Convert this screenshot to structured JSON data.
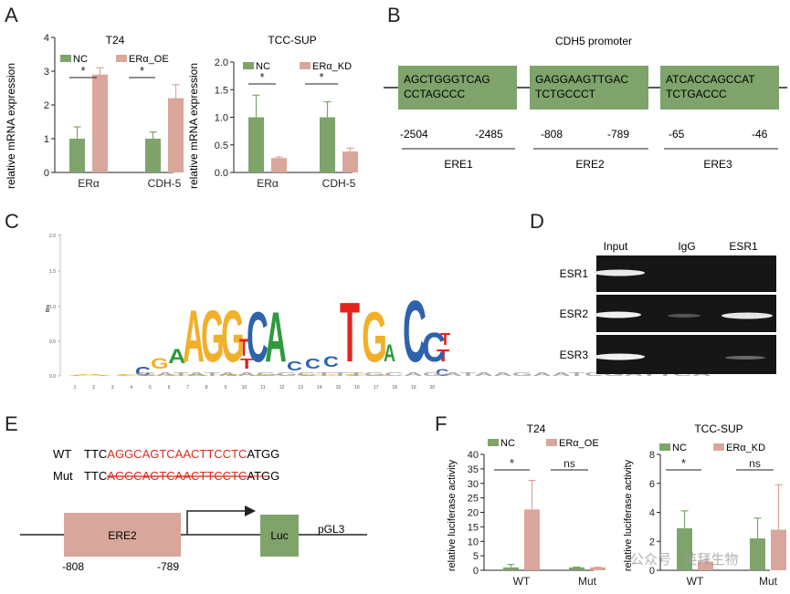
{
  "colors": {
    "nc": "#7ea46b",
    "treat": "#d9a69b",
    "ere_box": "#7ea46b",
    "ere2_box": "#d9a69b",
    "mut_red": "#e0281e",
    "logo_A": "#f0b02a",
    "logo_C": "#2e62ad",
    "logo_G": "#f0b02a",
    "logo_T": "#e3231c",
    "logo_A2": "#2e9a3c",
    "gel_bg": "#161616"
  },
  "panels": {
    "A": "A",
    "B": "B",
    "C": "C",
    "D": "D",
    "E": "E",
    "F": "F"
  },
  "panel_a": {
    "ylabel": "relative mRNA expression",
    "legend_nc": "NC",
    "sig": "*",
    "t24": {
      "title": "T24",
      "legend_treat": "ERα_OE"
    },
    "tcc": {
      "title": "TCC-SUP",
      "legend_treat": "ERα_KD"
    }
  },
  "panel_b": {
    "title": "CDH5 promoter",
    "boxes": [
      {
        "line1": "AGCTGGGTCAG",
        "line2": "CCTAGCCC",
        "start": "-2504",
        "end": "-2485",
        "label": "ERE1"
      },
      {
        "line1": "GAGGAAGTTGAC",
        "line2": "TCTGCCCT",
        "start": "-808",
        "end": "-789",
        "label": "ERE2"
      },
      {
        "line1": "ATCACCAGCCAT",
        "line2": "TCTGACCC",
        "start": "-65",
        "end": "-46",
        "label": "ERE3"
      }
    ]
  },
  "panel_c": {
    "ylabel": "Bits",
    "yticks": [
      "2.0",
      "1.5",
      "1.0",
      "0.5",
      "0.0"
    ],
    "positions": [
      "1",
      "2",
      "3",
      "4",
      "5",
      "6",
      "7",
      "8",
      "9",
      "10",
      "11",
      "12",
      "13",
      "14",
      "15",
      "16",
      "17",
      "18",
      "19",
      "20"
    ]
  },
  "panel_d": {
    "headers": [
      "Input",
      "IgG",
      "ESR1"
    ],
    "rows": [
      "ESR1",
      "ESR2",
      "ESR3"
    ]
  },
  "panel_e": {
    "wt_label": "WT",
    "mut_label": "Mut",
    "prefix": "TTC",
    "motif": "AGGCAGTCAACTTCCTC",
    "suffix": "ATGG",
    "ere_label": "ERE2",
    "luc_label": "Luc",
    "vector": "pGL3",
    "start": "-808",
    "end": "-789"
  },
  "panel_f": {
    "ylabel": "relative luciferase activity",
    "legend_nc": "NC",
    "sig": "*",
    "ns": "ns",
    "t24": {
      "title": "T24",
      "legend_treat": "ERα_OE"
    },
    "tcc": {
      "title": "TCC-SUP",
      "legend_treat": "ERα_KD"
    }
  },
  "watermark": "公众号 · 英拜生物",
  "chart_data": [
    {
      "type": "bar",
      "title": "T24",
      "ylabel": "relative mRNA expression",
      "categories": [
        "ERα",
        "CDH-5"
      ],
      "ylim": [
        0,
        4
      ],
      "yticks": [
        0,
        1,
        2,
        3,
        4
      ],
      "series": [
        {
          "name": "NC",
          "values": [
            1.0,
            1.0
          ],
          "errors": [
            0.35,
            0.2
          ]
        },
        {
          "name": "ERα_OE",
          "values": [
            2.9,
            2.2
          ],
          "errors": [
            0.2,
            0.4
          ]
        }
      ]
    },
    {
      "type": "bar",
      "title": "TCC-SUP",
      "ylabel": "relative mRNA expression",
      "categories": [
        "ERα",
        "CDH-5"
      ],
      "ylim": [
        0,
        2.0
      ],
      "yticks": [
        0.0,
        0.5,
        1.0,
        1.5,
        2.0
      ],
      "series": [
        {
          "name": "NC",
          "values": [
            1.0,
            1.0
          ],
          "errors": [
            0.4,
            0.28
          ]
        },
        {
          "name": "ERα_KD",
          "values": [
            0.26,
            0.38
          ],
          "errors": [
            0.02,
            0.06
          ]
        }
      ]
    },
    {
      "type": "bar",
      "title": "T24",
      "ylabel": "relative luciferase activity",
      "categories": [
        "WT",
        "Mut"
      ],
      "ylim": [
        0,
        40
      ],
      "yticks": [
        0,
        5,
        10,
        15,
        20,
        25,
        30,
        35,
        40
      ],
      "series": [
        {
          "name": "NC",
          "values": [
            1.0,
            1.0
          ],
          "errors": [
            1.0,
            0.1
          ]
        },
        {
          "name": "ERα_OE",
          "values": [
            21,
            1.0
          ],
          "errors": [
            10,
            0.1
          ]
        }
      ]
    },
    {
      "type": "bar",
      "title": "TCC-SUP",
      "ylabel": "relative luciferase activity",
      "categories": [
        "WT",
        "Mut"
      ],
      "ylim": [
        0,
        8
      ],
      "yticks": [
        0,
        2,
        4,
        6,
        8
      ],
      "series": [
        {
          "name": "NC",
          "values": [
            2.9,
            2.2
          ],
          "errors": [
            1.2,
            1.4
          ]
        },
        {
          "name": "ERα_KD",
          "values": [
            0.6,
            2.8
          ],
          "errors": [
            0.1,
            3.1
          ]
        }
      ]
    }
  ]
}
